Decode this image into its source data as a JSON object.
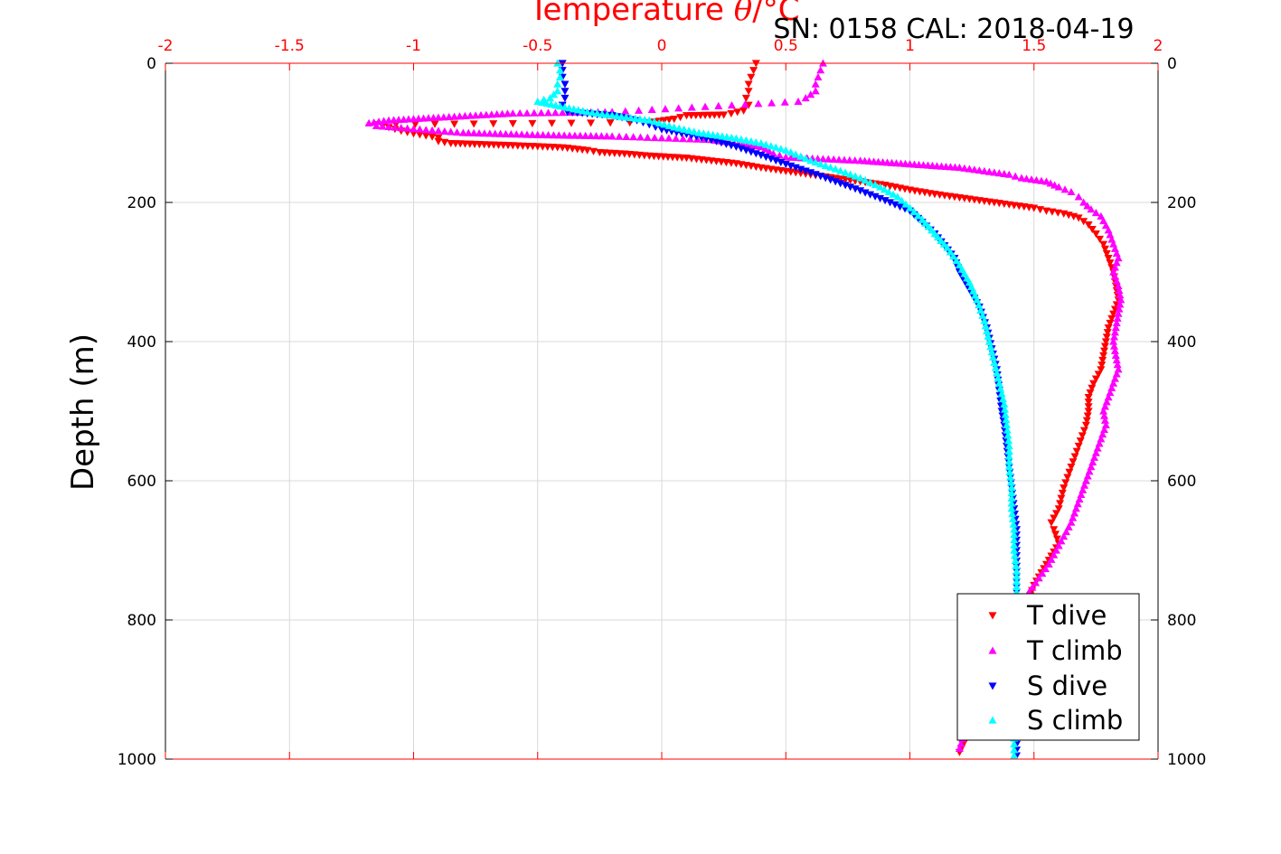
{
  "chart_data": {
    "type": "scatter",
    "title": "SN: 0158  CAL: 2018-04-19",
    "xlabel_prefix": "Temperature ",
    "xlabel_theta": "θ",
    "xlabel_suffix": "/°C",
    "ylabel": "Depth (m)",
    "xlim": [
      -2,
      2
    ],
    "ylim": [
      0,
      1000
    ],
    "y_reversed": true,
    "grid": true,
    "legend_position": "bottom-right",
    "x_ticks": [
      "-2",
      "-1.5",
      "-1",
      "-0.5",
      "0",
      "0.5",
      "1",
      "1.5",
      "2"
    ],
    "x_tick_values": [
      -2,
      -1.5,
      -1,
      -0.5,
      0,
      0.5,
      1,
      1.5,
      2
    ],
    "y_ticks": [
      "0",
      "200",
      "400",
      "600",
      "800",
      "1000"
    ],
    "y_tick_values": [
      0,
      200,
      400,
      600,
      800,
      1000
    ],
    "colors": {
      "axis_top": "#ff0000",
      "axis": "#000000",
      "grid": "#d9d9d9"
    },
    "series": [
      {
        "name": "T dive",
        "marker": "triangle-down",
        "color": "#ff0000",
        "points": [
          [
            0.38,
            0
          ],
          [
            0.37,
            10
          ],
          [
            0.36,
            20
          ],
          [
            0.35,
            30
          ],
          [
            0.35,
            40
          ],
          [
            0.34,
            50
          ],
          [
            0.35,
            60
          ],
          [
            0.33,
            68
          ],
          [
            0.28,
            72
          ],
          [
            0.25,
            74
          ],
          [
            0.1,
            75
          ],
          [
            0.05,
            80
          ],
          [
            -0.05,
            85
          ],
          [
            -1.15,
            88
          ],
          [
            -1.1,
            92
          ],
          [
            -1.05,
            97
          ],
          [
            -1.0,
            101
          ],
          [
            -0.95,
            104
          ],
          [
            -0.9,
            107
          ],
          [
            -0.9,
            112
          ],
          [
            -0.85,
            115
          ],
          [
            -0.6,
            118
          ],
          [
            -0.4,
            121
          ],
          [
            -0.3,
            125
          ],
          [
            -0.25,
            128
          ],
          [
            -0.15,
            130
          ],
          [
            -0.05,
            133
          ],
          [
            0.1,
            136
          ],
          [
            0.2,
            140
          ],
          [
            0.3,
            144
          ],
          [
            0.4,
            150
          ],
          [
            0.5,
            155
          ],
          [
            0.6,
            160
          ],
          [
            0.7,
            165
          ],
          [
            0.8,
            170
          ],
          [
            0.9,
            175
          ],
          [
            1.0,
            182
          ],
          [
            1.1,
            188
          ],
          [
            1.2,
            193
          ],
          [
            1.3,
            198
          ],
          [
            1.4,
            203
          ],
          [
            1.5,
            208
          ],
          [
            1.55,
            212
          ],
          [
            1.62,
            216
          ],
          [
            1.68,
            222
          ],
          [
            1.72,
            232
          ],
          [
            1.75,
            245
          ],
          [
            1.78,
            260
          ],
          [
            1.8,
            280
          ],
          [
            1.82,
            300
          ],
          [
            1.83,
            320
          ],
          [
            1.84,
            340
          ],
          [
            1.82,
            360
          ],
          [
            1.8,
            380
          ],
          [
            1.79,
            400
          ],
          [
            1.78,
            420
          ],
          [
            1.77,
            440
          ],
          [
            1.74,
            460
          ],
          [
            1.72,
            480
          ],
          [
            1.72,
            500
          ],
          [
            1.71,
            520
          ],
          [
            1.68,
            550
          ],
          [
            1.65,
            580
          ],
          [
            1.62,
            610
          ],
          [
            1.6,
            640
          ],
          [
            1.57,
            660
          ],
          [
            1.58,
            670
          ],
          [
            1.6,
            690
          ],
          [
            1.55,
            720
          ],
          [
            1.5,
            750
          ],
          [
            1.47,
            780
          ],
          [
            1.44,
            810
          ],
          [
            1.4,
            840
          ],
          [
            1.36,
            870
          ],
          [
            1.32,
            900
          ],
          [
            1.28,
            930
          ],
          [
            1.24,
            960
          ],
          [
            1.2,
            990
          ]
        ]
      },
      {
        "name": "T climb",
        "marker": "triangle-up",
        "color": "#ff00ff",
        "points": [
          [
            0.65,
            0
          ],
          [
            0.64,
            10
          ],
          [
            0.63,
            20
          ],
          [
            0.62,
            30
          ],
          [
            0.62,
            40
          ],
          [
            0.58,
            50
          ],
          [
            0.55,
            55
          ],
          [
            -0.2,
            70
          ],
          [
            -0.6,
            72
          ],
          [
            -0.9,
            78
          ],
          [
            -1.1,
            82
          ],
          [
            -1.18,
            86
          ],
          [
            -1.15,
            90
          ],
          [
            -0.8,
            100
          ],
          [
            -0.5,
            103
          ],
          [
            -0.2,
            105
          ],
          [
            0.2,
            110
          ],
          [
            0.4,
            120
          ],
          [
            0.45,
            130
          ],
          [
            0.5,
            135
          ],
          [
            0.8,
            140
          ],
          [
            1.0,
            145
          ],
          [
            1.2,
            150
          ],
          [
            1.3,
            155
          ],
          [
            1.4,
            160
          ],
          [
            1.45,
            165
          ],
          [
            1.55,
            170
          ],
          [
            1.6,
            178
          ],
          [
            1.65,
            185
          ],
          [
            1.68,
            192
          ],
          [
            1.7,
            200
          ],
          [
            1.73,
            210
          ],
          [
            1.77,
            220
          ],
          [
            1.8,
            240
          ],
          [
            1.82,
            260
          ],
          [
            1.84,
            280
          ],
          [
            1.82,
            300
          ],
          [
            1.84,
            320
          ],
          [
            1.85,
            340
          ],
          [
            1.84,
            360
          ],
          [
            1.83,
            380
          ],
          [
            1.82,
            400
          ],
          [
            1.83,
            420
          ],
          [
            1.84,
            440
          ],
          [
            1.82,
            460
          ],
          [
            1.8,
            480
          ],
          [
            1.78,
            500
          ],
          [
            1.79,
            520
          ],
          [
            1.77,
            540
          ],
          [
            1.75,
            560
          ],
          [
            1.73,
            580
          ],
          [
            1.71,
            600
          ],
          [
            1.69,
            620
          ],
          [
            1.67,
            640
          ],
          [
            1.65,
            660
          ],
          [
            1.62,
            680
          ],
          [
            1.59,
            700
          ],
          [
            1.56,
            720
          ],
          [
            1.52,
            740
          ],
          [
            1.48,
            760
          ],
          [
            1.45,
            780
          ],
          [
            1.42,
            800
          ],
          [
            1.39,
            830
          ],
          [
            1.35,
            860
          ],
          [
            1.31,
            890
          ],
          [
            1.27,
            920
          ],
          [
            1.23,
            950
          ],
          [
            1.2,
            985
          ]
        ]
      },
      {
        "name": "S dive",
        "marker": "triangle-down",
        "color": "#0000ff",
        "points": [
          [
            -0.4,
            0
          ],
          [
            -0.4,
            10
          ],
          [
            -0.4,
            20
          ],
          [
            -0.39,
            30
          ],
          [
            -0.39,
            40
          ],
          [
            -0.39,
            50
          ],
          [
            -0.4,
            60
          ],
          [
            -0.38,
            70
          ],
          [
            -0.2,
            75
          ],
          [
            -0.1,
            82
          ],
          [
            -0.05,
            88
          ],
          [
            0.0,
            95
          ],
          [
            0.1,
            102
          ],
          [
            0.2,
            110
          ],
          [
            0.3,
            120
          ],
          [
            0.4,
            132
          ],
          [
            0.5,
            145
          ],
          [
            0.6,
            157
          ],
          [
            0.7,
            170
          ],
          [
            0.8,
            183
          ],
          [
            0.9,
            197
          ],
          [
            1.0,
            212
          ],
          [
            1.05,
            228
          ],
          [
            1.1,
            245
          ],
          [
            1.14,
            262
          ],
          [
            1.18,
            280
          ],
          [
            1.2,
            300
          ],
          [
            1.24,
            325
          ],
          [
            1.28,
            350
          ],
          [
            1.31,
            380
          ],
          [
            1.33,
            410
          ],
          [
            1.35,
            440
          ],
          [
            1.36,
            470
          ],
          [
            1.37,
            500
          ],
          [
            1.38,
            520
          ],
          [
            1.39,
            550
          ],
          [
            1.4,
            580
          ],
          [
            1.41,
            610
          ],
          [
            1.42,
            640
          ],
          [
            1.43,
            670
          ],
          [
            1.43,
            700
          ],
          [
            1.43,
            730
          ],
          [
            1.43,
            760
          ],
          [
            1.43,
            790
          ],
          [
            1.43,
            820
          ],
          [
            1.43,
            850
          ],
          [
            1.43,
            880
          ],
          [
            1.43,
            910
          ],
          [
            1.43,
            940
          ],
          [
            1.43,
            970
          ],
          [
            1.43,
            995
          ]
        ]
      },
      {
        "name": "S climb",
        "marker": "triangle-up",
        "color": "#00ffff",
        "points": [
          [
            -0.42,
            0
          ],
          [
            -0.41,
            10
          ],
          [
            -0.41,
            20
          ],
          [
            -0.42,
            30
          ],
          [
            -0.42,
            40
          ],
          [
            -0.45,
            50
          ],
          [
            -0.5,
            55
          ],
          [
            -0.3,
            70
          ],
          [
            -0.2,
            75
          ],
          [
            -0.05,
            82
          ],
          [
            0.05,
            92
          ],
          [
            0.15,
            100
          ],
          [
            0.3,
            108
          ],
          [
            0.4,
            115
          ],
          [
            0.5,
            125
          ],
          [
            0.6,
            140
          ],
          [
            0.7,
            152
          ],
          [
            0.8,
            165
          ],
          [
            0.88,
            178
          ],
          [
            0.95,
            192
          ],
          [
            1.0,
            208
          ],
          [
            1.05,
            225
          ],
          [
            1.1,
            245
          ],
          [
            1.15,
            265
          ],
          [
            1.2,
            290
          ],
          [
            1.24,
            315
          ],
          [
            1.27,
            340
          ],
          [
            1.3,
            370
          ],
          [
            1.32,
            400
          ],
          [
            1.34,
            430
          ],
          [
            1.36,
            460
          ],
          [
            1.38,
            490
          ],
          [
            1.39,
            520
          ],
          [
            1.4,
            550
          ],
          [
            1.4,
            580
          ],
          [
            1.41,
            610
          ],
          [
            1.41,
            640
          ],
          [
            1.42,
            670
          ],
          [
            1.42,
            700
          ],
          [
            1.43,
            730
          ],
          [
            1.43,
            760
          ],
          [
            1.43,
            790
          ],
          [
            1.43,
            820
          ],
          [
            1.43,
            850
          ],
          [
            1.43,
            880
          ],
          [
            1.42,
            910
          ],
          [
            1.42,
            940
          ],
          [
            1.42,
            970
          ],
          [
            1.42,
            995
          ]
        ]
      }
    ]
  }
}
